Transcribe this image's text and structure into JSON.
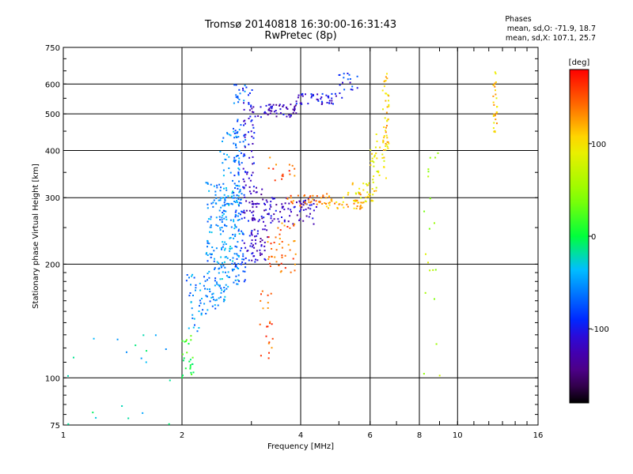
{
  "header": {
    "title_line1": "Tromsø 20140818 16:30:00-16:31:43",
    "title_line2": "RwPretec (8p)",
    "stats_title": "Phases",
    "stats_o": "mean, sd,O: -71.9, 18.7",
    "stats_x": "mean, sd,X: 107.1, 25.7"
  },
  "colorbar": {
    "label": "[deg]",
    "ticks": [
      {
        "value": 100,
        "label": "100"
      },
      {
        "value": 0,
        "label": "0"
      },
      {
        "value": -100,
        "label": "-100"
      }
    ],
    "range": [
      -180,
      180
    ]
  },
  "chart_data": {
    "type": "scatter",
    "title": "Tromsø 20140818 16:30:00-16:31:43",
    "subtitle": "RwPretec (8p)",
    "xlabel": "Frequency [MHz]",
    "ylabel": "Stationary phase Virtual Height [km]",
    "xscale": "log",
    "yscale": "log",
    "xlim": [
      1,
      16
    ],
    "ylim": [
      75,
      750
    ],
    "xticks": [
      {
        "value": 1,
        "label": "1"
      },
      {
        "value": 2,
        "label": "2"
      },
      {
        "value": 4,
        "label": "4"
      },
      {
        "value": 6,
        "label": "6"
      },
      {
        "value": 8,
        "label": "8"
      },
      {
        "value": 10,
        "label": "10"
      },
      {
        "value": 16,
        "label": "16"
      }
    ],
    "yticks": [
      {
        "value": 75,
        "label": "75"
      },
      {
        "value": 100,
        "label": "100"
      },
      {
        "value": 200,
        "label": "200"
      },
      {
        "value": 300,
        "label": "300"
      },
      {
        "value": 400,
        "label": "400"
      },
      {
        "value": 500,
        "label": "500"
      },
      {
        "value": 600,
        "label": "600"
      },
      {
        "value": 750,
        "label": "750"
      }
    ],
    "grid": true,
    "color_variable": "phase [deg]",
    "clusters": [
      {
        "f0": 2.0,
        "f1": 2.15,
        "h0": 100,
        "h1": 130,
        "phase": 10,
        "n": 25
      },
      {
        "f0": 2.05,
        "f1": 2.3,
        "h0": 130,
        "h1": 190,
        "phase": -55,
        "n": 40
      },
      {
        "f0": 2.3,
        "f1": 2.6,
        "h0": 150,
        "h1": 330,
        "phase": -55,
        "n": 140
      },
      {
        "f0": 2.5,
        "f1": 2.8,
        "h0": 170,
        "h1": 460,
        "phase": -50,
        "n": 130
      },
      {
        "f0": 2.7,
        "f1": 2.9,
        "h0": 180,
        "h1": 600,
        "phase": -70,
        "n": 110
      },
      {
        "f0": 2.85,
        "f1": 3.05,
        "h0": 200,
        "h1": 590,
        "phase": -110,
        "n": 90
      },
      {
        "f0": 3.0,
        "f1": 3.3,
        "h0": 200,
        "h1": 320,
        "phase": -120,
        "n": 60
      },
      {
        "f0": 2.95,
        "f1": 3.9,
        "h0": 490,
        "h1": 530,
        "phase": -120,
        "n": 60
      },
      {
        "f0": 3.9,
        "f1": 5.1,
        "h0": 530,
        "h1": 565,
        "phase": -105,
        "n": 45
      },
      {
        "f0": 5.0,
        "f1": 5.6,
        "h0": 560,
        "h1": 650,
        "phase": -90,
        "n": 18
      },
      {
        "f0": 3.2,
        "f1": 4.4,
        "h0": 255,
        "h1": 300,
        "phase": -120,
        "n": 80
      },
      {
        "f0": 3.7,
        "f1": 4.8,
        "h0": 285,
        "h1": 305,
        "phase": 140,
        "n": 40
      },
      {
        "f0": 4.6,
        "f1": 5.8,
        "h0": 280,
        "h1": 310,
        "phase": 120,
        "n": 40
      },
      {
        "f0": 5.4,
        "f1": 6.3,
        "h0": 290,
        "h1": 330,
        "phase": 95,
        "n": 35
      },
      {
        "f0": 6.0,
        "f1": 6.6,
        "h0": 330,
        "h1": 450,
        "phase": 90,
        "n": 30
      },
      {
        "f0": 6.45,
        "f1": 6.7,
        "h0": 400,
        "h1": 640,
        "phase": 110,
        "n": 45
      },
      {
        "f0": 3.3,
        "f1": 3.9,
        "h0": 190,
        "h1": 260,
        "phase": 145,
        "n": 45
      },
      {
        "f0": 3.1,
        "f1": 3.4,
        "h0": 110,
        "h1": 170,
        "phase": 150,
        "n": 22
      },
      {
        "f0": 3.3,
        "f1": 3.9,
        "h0": 330,
        "h1": 390,
        "phase": 150,
        "n": 15
      },
      {
        "f0": 8.2,
        "f1": 9.2,
        "h0": 100,
        "h1": 550,
        "phase": 60,
        "n": 20
      },
      {
        "f0": 12.3,
        "f1": 12.6,
        "h0": 440,
        "h1": 650,
        "phase": 110,
        "n": 30
      },
      {
        "f0": 1.0,
        "f1": 1.9,
        "h0": 75,
        "h1": 130,
        "phase": -30,
        "n": 20
      }
    ]
  }
}
